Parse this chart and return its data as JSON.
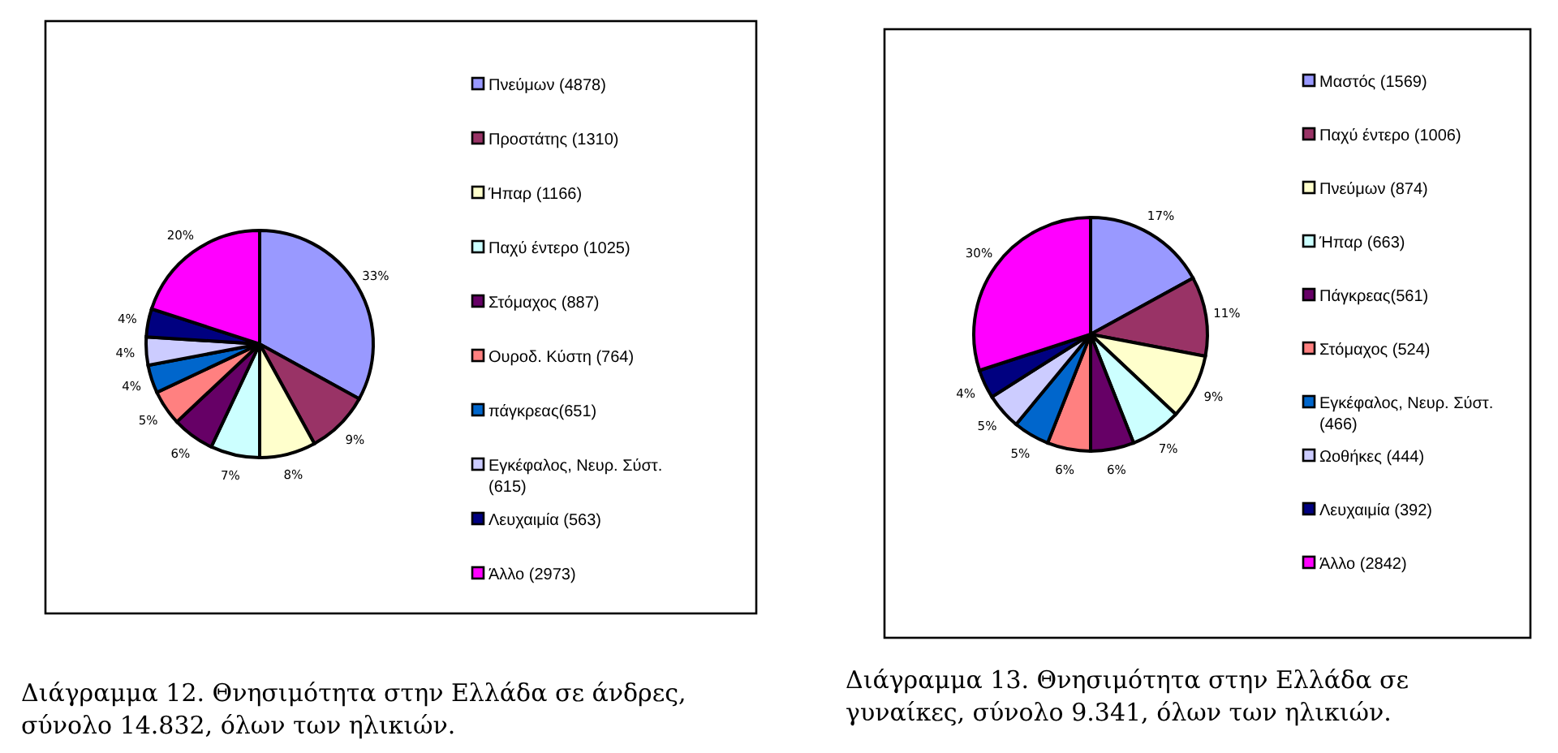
{
  "chart_data": [
    {
      "type": "pie",
      "categories": [
        "Πνεύμων (4878)",
        "Προστάτης (1310)",
        "Ήπαρ (1166)",
        "Παχύ έντερο (1025)",
        "Στόμαχος (887)",
        "Ουροδ. Κύστη (764)",
        "πάγκρεας(651)",
        "Εγκέφαλος, Νευρ. Σύστ. (615)",
        "Λευχαιμία (563)",
        "Άλλο (2973)"
      ],
      "values": [
        33,
        9,
        8,
        7,
        6,
        5,
        4,
        4,
        4,
        20
      ],
      "value_labels": [
        "33%",
        "9%",
        "8%",
        "7%",
        "6%",
        "5%",
        "4%",
        "4%",
        "4%",
        "20%"
      ],
      "colors": [
        "#9999ff",
        "#993366",
        "#ffffcc",
        "#ccffff",
        "#660066",
        "#ff8080",
        "#0066cc",
        "#ccccff",
        "#000080",
        "#ff00ff"
      ],
      "legend": "right",
      "annotations": [
        "Διάγραμμα 12. Θνησιμότητα στην Ελλάδα σε άνδρες, σύνολο 14.832, όλων των ηλικιών."
      ]
    },
    {
      "type": "pie",
      "categories": [
        "Μαστός (1569)",
        "Παχύ έντερο (1006)",
        "Πνεύμων (874)",
        "Ήπαρ (663)",
        "Πάγκρεας(561)",
        "Στόμαχος (524)",
        "Εγκέφαλος, Νευρ. Σύστ. (466)",
        "Ωοθήκες (444)",
        "Λευχαιμία (392)",
        "Άλλο (2842)"
      ],
      "values": [
        17,
        11,
        9,
        7,
        6,
        6,
        5,
        5,
        4,
        30
      ],
      "value_labels": [
        "17%",
        "11%",
        "9%",
        "7%",
        "6%",
        "6%",
        "5%",
        "5%",
        "4%",
        "30%"
      ],
      "colors": [
        "#9999ff",
        "#993366",
        "#ffffcc",
        "#ccffff",
        "#660066",
        "#ff8080",
        "#0066cc",
        "#ccccff",
        "#000080",
        "#ff00ff"
      ],
      "legend": "right",
      "annotations": [
        "Διάγραμμα 13. Θνησιμότητα στην Ελλάδα σε γυναίκες, σύνολο 9.341, όλων των ηλικιών."
      ]
    }
  ]
}
